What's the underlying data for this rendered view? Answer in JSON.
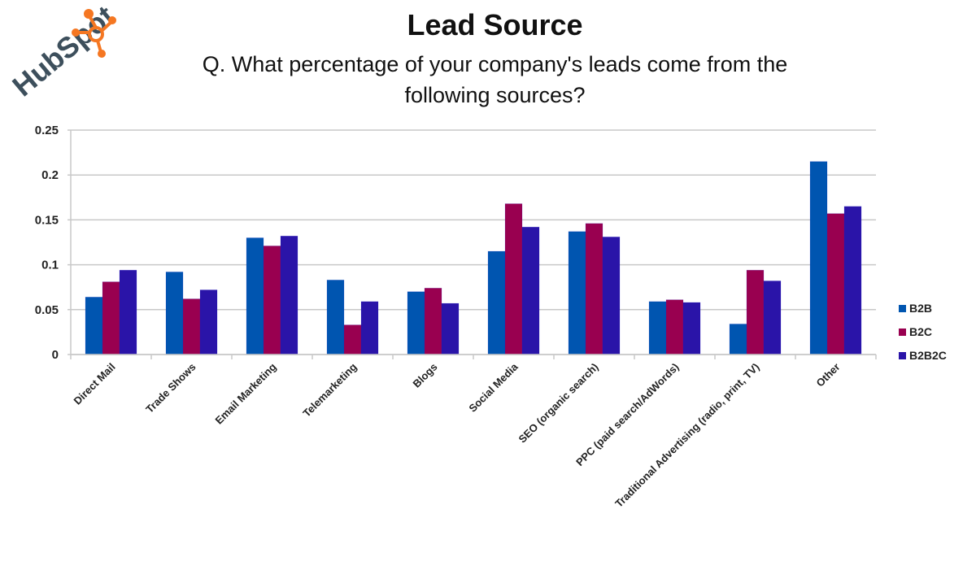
{
  "logo": {
    "text": "HubSpot",
    "accent": "#F57722",
    "text_color": "#3D4F5C"
  },
  "chart_data": {
    "type": "bar",
    "title": "Lead Source",
    "subtitle_line1": "Q. What percentage of your company's leads come from the",
    "subtitle_line2": "following sources?",
    "xlabel": "",
    "ylabel": "",
    "ylim": [
      0,
      0.25
    ],
    "yticks": [
      "0",
      "0.05",
      "0.1",
      "0.15",
      "0.2",
      "0.25"
    ],
    "ytick_values": [
      0,
      0.05,
      0.1,
      0.15,
      0.2,
      0.25
    ],
    "grid": true,
    "legend_position": "right",
    "categories": [
      "Direct Mail",
      "Trade Shows",
      "Email Marketing",
      "Telemarketing",
      "Blogs",
      "Social Media",
      "SEO (organic search)",
      "PPC (paid search/AdWords)",
      "Traditional Advertising (radio, print, TV)",
      "Other"
    ],
    "series": [
      {
        "name": "B2B",
        "color": "#0055B0",
        "values": [
          0.064,
          0.092,
          0.13,
          0.083,
          0.07,
          0.115,
          0.137,
          0.059,
          0.034,
          0.215
        ]
      },
      {
        "name": "B2C",
        "color": "#990050",
        "values": [
          0.081,
          0.062,
          0.121,
          0.033,
          0.074,
          0.168,
          0.146,
          0.061,
          0.094,
          0.157
        ]
      },
      {
        "name": "B2B2C",
        "color": "#2A14A8",
        "values": [
          0.094,
          0.072,
          0.132,
          0.059,
          0.057,
          0.142,
          0.131,
          0.058,
          0.082,
          0.165
        ]
      }
    ]
  }
}
